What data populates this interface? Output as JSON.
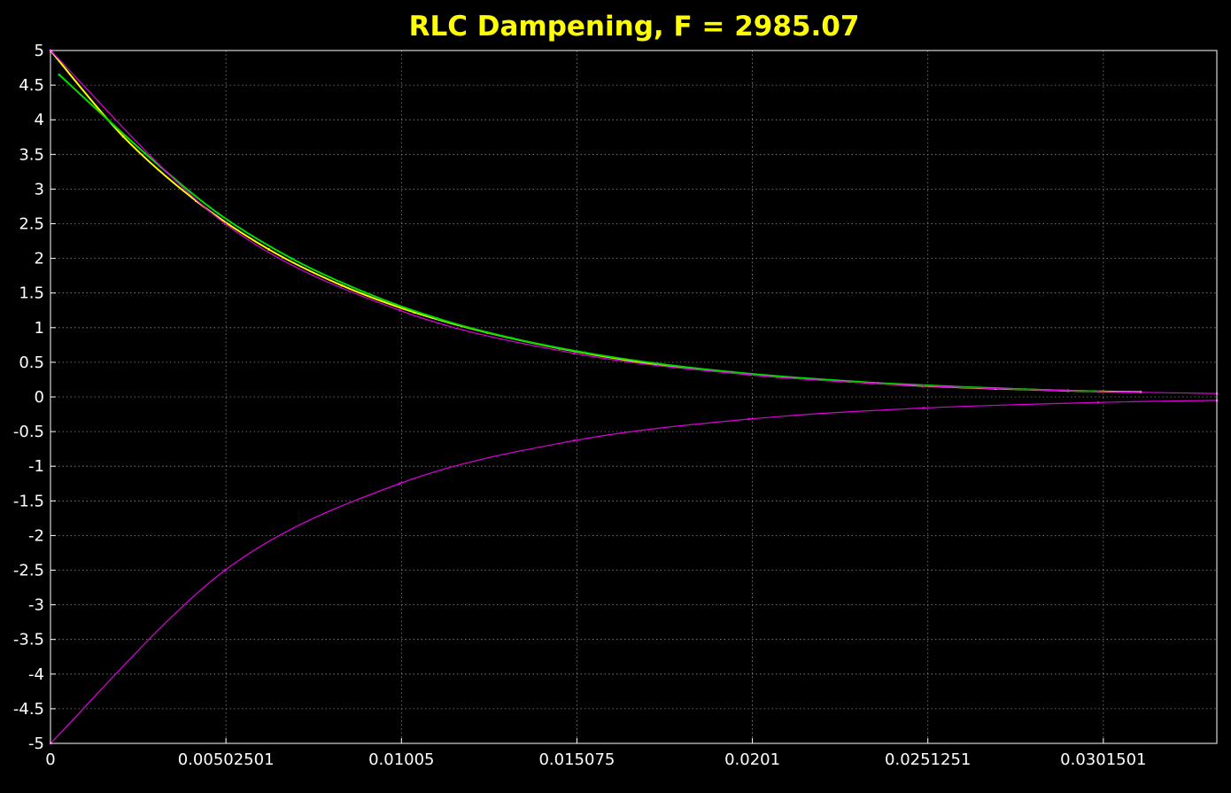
{
  "chart_data": {
    "type": "line",
    "title": "RLC Dampening,   F = 2985.07",
    "xlabel": "",
    "ylabel": "",
    "xlim": [
      0,
      0.0334
    ],
    "ylim": [
      -5,
      5
    ],
    "grid": true,
    "x_ticks": [
      {
        "value": 0,
        "label": "0"
      },
      {
        "value": 0.00502501,
        "label": "0.00502501"
      },
      {
        "value": 0.01005,
        "label": "0.01005"
      },
      {
        "value": 0.015075,
        "label": "0.015075"
      },
      {
        "value": 0.0201,
        "label": "0.0201"
      },
      {
        "value": 0.0251251,
        "label": "0.0251251"
      },
      {
        "value": 0.0301501,
        "label": "0.0301501"
      }
    ],
    "y_ticks": [
      {
        "value": 5,
        "label": "5"
      },
      {
        "value": 4.5,
        "label": "4.5"
      },
      {
        "value": 4,
        "label": "4"
      },
      {
        "value": 3.5,
        "label": "3.5"
      },
      {
        "value": 3,
        "label": "3"
      },
      {
        "value": 2.5,
        "label": "2.5"
      },
      {
        "value": 2,
        "label": "2"
      },
      {
        "value": 1.5,
        "label": "1.5"
      },
      {
        "value": 1,
        "label": "1"
      },
      {
        "value": 0.5,
        "label": "0.5"
      },
      {
        "value": 0,
        "label": "0"
      },
      {
        "value": -0.5,
        "label": "-0.5"
      },
      {
        "value": -1,
        "label": "-1"
      },
      {
        "value": -1.5,
        "label": "-1.5"
      },
      {
        "value": -2,
        "label": "-2"
      },
      {
        "value": -2.5,
        "label": "-2.5"
      },
      {
        "value": -3,
        "label": "-3"
      },
      {
        "value": -3.5,
        "label": "-3.5"
      },
      {
        "value": -4,
        "label": "-4"
      },
      {
        "value": -4.5,
        "label": "-4.5"
      },
      {
        "value": -5,
        "label": "-5"
      }
    ],
    "series": [
      {
        "color": "#ffff00",
        "x": [
          0,
          0.00208,
          0.00417,
          0.00625,
          0.00834,
          0.01042,
          0.0125,
          0.01458,
          0.01666,
          0.01874,
          0.02082,
          0.0229,
          0.02498,
          0.02706,
          0.02914,
          0.03122
        ],
        "values": [
          5,
          3.76,
          2.83,
          2.13,
          1.61,
          1.22,
          0.93,
          0.7,
          0.52,
          0.39,
          0.29,
          0.22,
          0.16,
          0.12,
          0.09,
          0.07
        ]
      },
      {
        "color": "#00dd00",
        "x": [
          0.00025,
          0.0027,
          0.0048,
          0.0069,
          0.009,
          0.0111,
          0.0132,
          0.0153,
          0.0174,
          0.0195,
          0.0216,
          0.0237,
          0.0258,
          0.0279,
          0.03
        ],
        "values": [
          4.65,
          3.52,
          2.65,
          2.0,
          1.51,
          1.13,
          0.85,
          0.64,
          0.48,
          0.36,
          0.27,
          0.2,
          0.15,
          0.11,
          0.08
        ]
      },
      {
        "color": "#dd00dd",
        "x": [
          0,
          0.005,
          0.01,
          0.015,
          0.02,
          0.025,
          0.03,
          0.0334
        ],
        "values": [
          5,
          2.5,
          1.25,
          0.63,
          0.32,
          0.16,
          0.08,
          0.05
        ]
      },
      {
        "color": "#dd00dd",
        "x": [
          0,
          0.005,
          0.01,
          0.015,
          0.02,
          0.025,
          0.03,
          0.0334
        ],
        "values": [
          -5,
          -2.5,
          -1.25,
          -0.63,
          -0.32,
          -0.16,
          -0.08,
          -0.05
        ]
      }
    ]
  }
}
